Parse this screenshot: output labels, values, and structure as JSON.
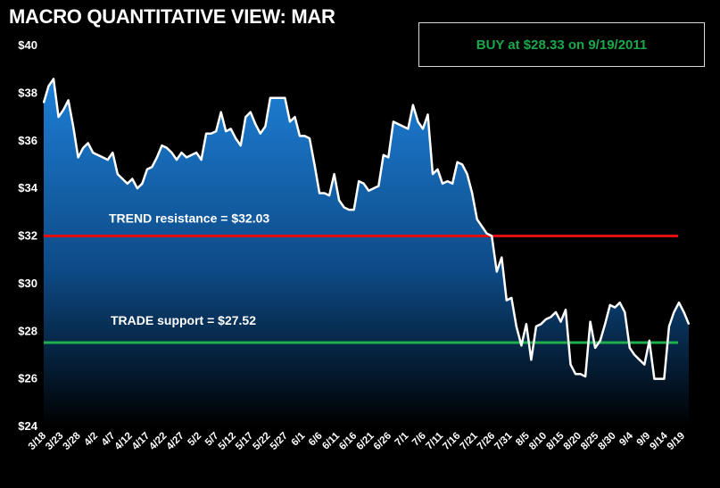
{
  "title": "MACRO QUANTITATIVE VIEW: MAR",
  "callout": "BUY at $28.33 on 9/19/2011",
  "colors": {
    "background": "#000000",
    "area_top": "#1e7fd6",
    "area_bottom": "#000000",
    "price_line": "#ffffff",
    "trend_line": "#e01010",
    "trade_line": "#1fb04c",
    "callout_text": "#1aa84a"
  },
  "chart_data": {
    "type": "area",
    "title": "MACRO QUANTITATIVE VIEW: MAR",
    "xlabel": "",
    "ylabel": "",
    "ylim": [
      24,
      40
    ],
    "y_ticks": [
      "$24",
      "$26",
      "$28",
      "$30",
      "$32",
      "$34",
      "$36",
      "$38",
      "$40"
    ],
    "x_tick_labels": [
      "3/18",
      "3/23",
      "3/28",
      "4/2",
      "4/7",
      "4/12",
      "4/17",
      "4/22",
      "4/27",
      "5/2",
      "5/7",
      "5/12",
      "5/17",
      "5/22",
      "5/27",
      "6/1",
      "6/6",
      "6/11",
      "6/16",
      "6/21",
      "6/26",
      "7/1",
      "7/6",
      "7/11",
      "7/16",
      "7/21",
      "7/26",
      "7/31",
      "8/5",
      "8/10",
      "8/15",
      "8/20",
      "8/25",
      "8/30",
      "9/4",
      "9/9",
      "9/14",
      "9/19"
    ],
    "series": [
      {
        "values": [
          37.6,
          38.3,
          38.6,
          37.0,
          37.3,
          37.7,
          36.6,
          35.3,
          35.7,
          35.9,
          35.5,
          35.4,
          35.3,
          35.2,
          35.5,
          34.6,
          34.4,
          34.2,
          34.4,
          34.0,
          34.2,
          34.8,
          34.9,
          35.3,
          35.8,
          35.7,
          35.5,
          35.2,
          35.5,
          35.3,
          35.4,
          35.5,
          35.2,
          36.3,
          36.3,
          36.4,
          37.2,
          36.4,
          36.5,
          36.1,
          35.8,
          37.0,
          37.2,
          36.7,
          36.3,
          36.6,
          37.8,
          37.8,
          37.8,
          37.8,
          36.8,
          37.0,
          36.2,
          36.2,
          36.1,
          35.0,
          33.8,
          33.8,
          33.7,
          34.6,
          33.5,
          33.2,
          33.1,
          33.1,
          34.3,
          34.2,
          33.9,
          34.0,
          34.1,
          35.4,
          35.3,
          36.8,
          36.7,
          36.6,
          36.5,
          37.5,
          36.8,
          36.5,
          37.1,
          34.6,
          34.8,
          34.2,
          34.3,
          34.2,
          35.1,
          35.0,
          34.6,
          33.8,
          32.7,
          32.4,
          32.1,
          32.0,
          30.5,
          31.1,
          29.3,
          29.4,
          28.2,
          27.4,
          28.3,
          26.8,
          28.2,
          28.3,
          28.5,
          28.6,
          28.8,
          28.4,
          28.9,
          26.6,
          26.2,
          26.2,
          26.1,
          28.4,
          27.3,
          27.6,
          28.3,
          29.1,
          29.0,
          29.2,
          28.8,
          27.3,
          27.0,
          26.8,
          26.6,
          27.6,
          26.0,
          26.0,
          26.0,
          28.2,
          28.8,
          29.2,
          28.8,
          28.3
        ]
      }
    ],
    "levels": [
      {
        "label": "TREND resistance = $32.03",
        "value": 32.03
      },
      {
        "label": "TRADE support = $27.52",
        "value": 27.52
      }
    ],
    "grid": false,
    "legend": "none"
  }
}
